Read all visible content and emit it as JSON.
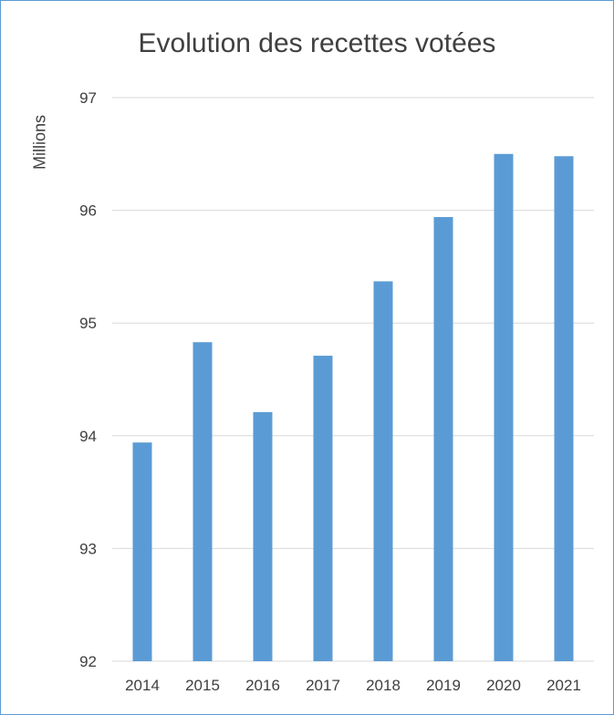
{
  "chart_data": {
    "type": "bar",
    "title": "Evolution des recettes votées",
    "unit_label": "Millions",
    "categories": [
      "2014",
      "2015",
      "2016",
      "2017",
      "2018",
      "2019",
      "2020",
      "2021"
    ],
    "values": [
      93.94,
      94.83,
      94.21,
      94.71,
      95.37,
      95.94,
      96.5,
      96.48
    ],
    "ylim": [
      92,
      97
    ],
    "yticks": [
      92,
      93,
      94,
      95,
      96,
      97
    ],
    "grid": true,
    "legend": "none",
    "colors": {
      "bar": "#5b9bd5",
      "grid": "#d9d9d9",
      "text": "#404040",
      "border": "#5b9bd5"
    }
  }
}
